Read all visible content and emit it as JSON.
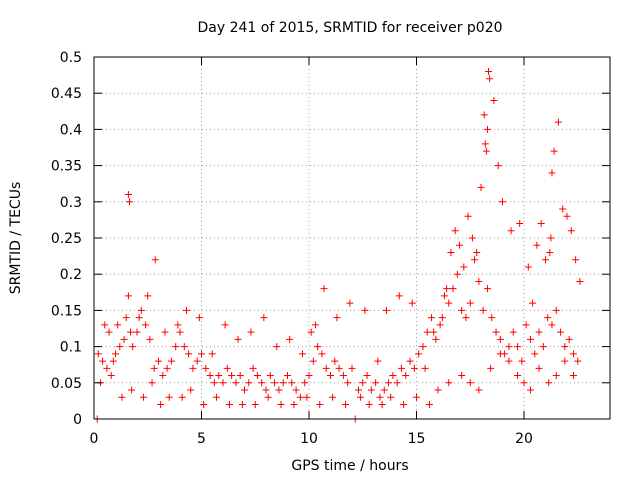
{
  "chart_data": {
    "type": "scatter",
    "title": "Day 241 of 2015, SRMTID for receiver p020",
    "xlabel": "GPS time / hours",
    "ylabel": "SRMTID / TECUs",
    "xlim": [
      0,
      24
    ],
    "ylim": [
      0,
      0.5
    ],
    "xticks": [
      0,
      5,
      10,
      15,
      20
    ],
    "yticks": [
      0,
      0.05,
      0.1,
      0.15,
      0.2,
      0.25,
      0.3,
      0.35,
      0.4,
      0.45,
      0.5
    ],
    "grid": true,
    "marker": "plus",
    "series": [
      {
        "name": "SRMTID",
        "color": "#ff0000",
        "x": [
          0.2,
          0.4,
          0.6,
          0.8,
          1.0,
          1.2,
          1.4,
          1.5,
          1.6,
          1.7,
          1.8,
          2.0,
          2.2,
          2.4,
          2.6,
          2.8,
          3.0,
          3.2,
          3.4,
          3.6,
          3.8,
          4.0,
          4.2,
          4.4,
          4.6,
          4.8,
          5.0,
          5.2,
          5.4,
          5.6,
          5.8,
          6.0,
          6.2,
          6.4,
          6.6,
          6.8,
          7.0,
          7.2,
          7.4,
          7.6,
          7.8,
          8.0,
          8.2,
          8.4,
          8.6,
          8.8,
          9.0,
          9.2,
          9.4,
          9.6,
          9.8,
          10.0,
          10.2,
          10.4,
          10.6,
          10.8,
          11.0,
          11.2,
          11.4,
          11.6,
          11.8,
          12.0,
          12.3,
          12.5,
          12.7,
          12.9,
          13.1,
          13.3,
          13.5,
          13.7,
          13.9,
          14.1,
          14.3,
          14.5,
          14.7,
          14.9,
          15.1,
          15.3,
          15.5,
          15.7,
          15.9,
          16.1,
          16.3,
          16.5,
          16.7,
          16.9,
          17.1,
          17.3,
          17.5,
          17.7,
          17.9,
          18.1,
          18.3,
          18.5,
          18.7,
          18.9,
          19.1,
          19.3,
          19.5,
          19.7,
          19.9,
          20.1,
          20.3,
          20.5,
          20.7,
          20.9,
          21.1,
          21.3,
          21.5,
          21.7,
          21.9,
          22.1,
          22.3,
          22.5,
          0.3,
          0.7,
          1.1,
          1.6,
          1.65,
          2.1,
          2.5,
          2.85,
          3.3,
          3.9,
          4.3,
          4.9,
          5.5,
          6.1,
          6.7,
          7.3,
          7.9,
          8.5,
          9.1,
          9.7,
          10.1,
          10.3,
          10.7,
          11.3,
          11.9,
          12.6,
          13.2,
          13.6,
          14.2,
          14.8,
          15.4,
          15.8,
          16.2,
          16.4,
          16.6,
          16.8,
          17.0,
          17.2,
          17.4,
          17.6,
          17.8,
          18.0,
          18.15,
          18.2,
          18.25,
          18.3,
          18.35,
          18.4,
          18.6,
          18.8,
          19.0,
          19.4,
          19.8,
          20.2,
          20.4,
          20.6,
          20.8,
          21.0,
          21.2,
          21.25,
          21.3,
          21.4,
          21.6,
          21.8,
          22.0,
          22.2,
          22.4,
          22.6,
          0.5,
          0.9,
          1.3,
          1.75,
          2.3,
          2.7,
          3.1,
          3.5,
          4.1,
          4.5,
          5.1,
          5.7,
          6.3,
          6.9,
          7.5,
          8.1,
          8.7,
          9.3,
          9.9,
          10.5,
          11.1,
          11.7,
          12.4,
          12.8,
          13.4,
          13.8,
          14.4,
          15.0,
          15.6,
          16.0,
          16.5,
          17.1,
          17.5,
          17.9,
          18.45,
          18.9,
          19.3,
          19.7,
          20.0,
          20.3,
          20.7,
          21.15,
          21.5,
          21.9,
          22.3,
          0.15,
          12.15
        ],
        "y": [
          0.09,
          0.08,
          0.07,
          0.06,
          0.09,
          0.1,
          0.11,
          0.14,
          0.17,
          0.12,
          0.1,
          0.12,
          0.15,
          0.13,
          0.11,
          0.07,
          0.08,
          0.06,
          0.07,
          0.08,
          0.1,
          0.12,
          0.1,
          0.09,
          0.07,
          0.08,
          0.09,
          0.07,
          0.06,
          0.05,
          0.06,
          0.05,
          0.07,
          0.06,
          0.05,
          0.06,
          0.04,
          0.05,
          0.07,
          0.06,
          0.05,
          0.04,
          0.06,
          0.05,
          0.04,
          0.05,
          0.06,
          0.05,
          0.04,
          0.03,
          0.05,
          0.06,
          0.08,
          0.1,
          0.09,
          0.07,
          0.06,
          0.08,
          0.07,
          0.06,
          0.05,
          0.07,
          0.04,
          0.05,
          0.06,
          0.04,
          0.05,
          0.03,
          0.04,
          0.05,
          0.06,
          0.05,
          0.07,
          0.06,
          0.08,
          0.07,
          0.09,
          0.1,
          0.12,
          0.14,
          0.11,
          0.13,
          0.17,
          0.16,
          0.18,
          0.2,
          0.15,
          0.14,
          0.16,
          0.22,
          0.19,
          0.15,
          0.18,
          0.14,
          0.12,
          0.11,
          0.09,
          0.1,
          0.12,
          0.1,
          0.08,
          0.13,
          0.11,
          0.09,
          0.12,
          0.1,
          0.14,
          0.13,
          0.15,
          0.12,
          0.1,
          0.11,
          0.09,
          0.08,
          0.05,
          0.12,
          0.13,
          0.31,
          0.3,
          0.14,
          0.17,
          0.22,
          0.12,
          0.13,
          0.15,
          0.14,
          0.09,
          0.13,
          0.11,
          0.12,
          0.14,
          0.1,
          0.11,
          0.09,
          0.12,
          0.13,
          0.18,
          0.14,
          0.16,
          0.15,
          0.08,
          0.15,
          0.17,
          0.16,
          0.07,
          0.12,
          0.14,
          0.18,
          0.23,
          0.26,
          0.24,
          0.21,
          0.28,
          0.25,
          0.23,
          0.32,
          0.42,
          0.38,
          0.37,
          0.4,
          0.48,
          0.47,
          0.44,
          0.35,
          0.3,
          0.26,
          0.27,
          0.21,
          0.16,
          0.24,
          0.27,
          0.22,
          0.23,
          0.25,
          0.34,
          0.37,
          0.41,
          0.29,
          0.28,
          0.26,
          0.22,
          0.19,
          0.13,
          0.08,
          0.03,
          0.04,
          0.03,
          0.05,
          0.02,
          0.03,
          0.03,
          0.04,
          0.02,
          0.03,
          0.02,
          0.02,
          0.02,
          0.03,
          0.02,
          0.02,
          0.03,
          0.02,
          0.03,
          0.02,
          0.03,
          0.02,
          0.02,
          0.03,
          0.02,
          0.03,
          0.02,
          0.04,
          0.05,
          0.06,
          0.05,
          0.04,
          0.07,
          0.09,
          0.08,
          0.06,
          0.05,
          0.04,
          0.07,
          0.05,
          0.06,
          0.08,
          0.06,
          0.0,
          0.0
        ]
      }
    ]
  }
}
